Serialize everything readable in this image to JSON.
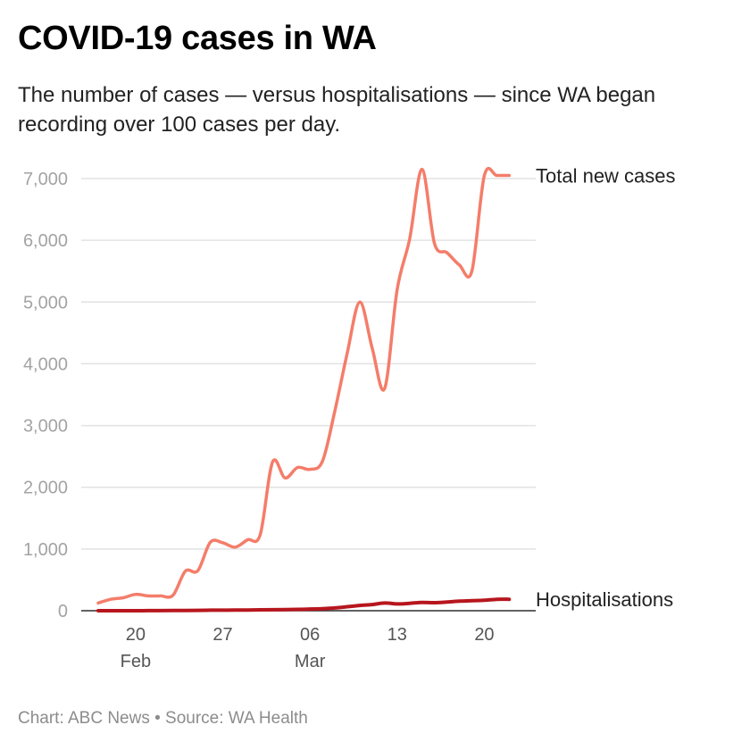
{
  "header": {
    "title": "COVID-19 cases in WA",
    "subtitle": "The number of cases — versus hospitalisations — since WA began recording over 100 cases per day."
  },
  "footer": {
    "credit": "Chart: ABC News • Source: WA Health"
  },
  "chart_data": {
    "type": "line",
    "title": "COVID-19 cases in WA",
    "ylim": [
      0,
      7000
    ],
    "yticks": [
      "0",
      "1,000",
      "2,000",
      "3,000",
      "4,000",
      "5,000",
      "6,000",
      "7,000"
    ],
    "grid": true,
    "x": [
      "2022-02-17",
      "2022-02-18",
      "2022-02-19",
      "2022-02-20",
      "2022-02-21",
      "2022-02-22",
      "2022-02-23",
      "2022-02-24",
      "2022-02-25",
      "2022-02-26",
      "2022-02-27",
      "2022-02-28",
      "2022-03-01",
      "2022-03-02",
      "2022-03-03",
      "2022-03-04",
      "2022-03-05",
      "2022-03-06",
      "2022-03-07",
      "2022-03-08",
      "2022-03-09",
      "2022-03-10",
      "2022-03-11",
      "2022-03-12",
      "2022-03-13",
      "2022-03-14",
      "2022-03-15",
      "2022-03-16",
      "2022-03-17",
      "2022-03-18",
      "2022-03-19",
      "2022-03-20",
      "2022-03-21",
      "2022-03-22"
    ],
    "xticks": [
      {
        "date": "2022-02-20",
        "day": "20",
        "month": "Feb"
      },
      {
        "date": "2022-02-27",
        "day": "27",
        "month": ""
      },
      {
        "date": "2022-03-06",
        "day": "06",
        "month": "Mar"
      },
      {
        "date": "2022-03-13",
        "day": "13",
        "month": ""
      },
      {
        "date": "2022-03-20",
        "day": "20",
        "month": ""
      }
    ],
    "series": [
      {
        "name": "Total new cases",
        "color": "#f47d6a",
        "values": [
          125,
          185,
          210,
          265,
          240,
          240,
          250,
          640,
          650,
          1110,
          1100,
          1030,
          1150,
          1230,
          2410,
          2150,
          2320,
          2290,
          2420,
          3240,
          4180,
          5000,
          4250,
          3600,
          5200,
          6020,
          7150,
          5950,
          5800,
          5600,
          5500,
          7050,
          7050,
          7050
        ]
      },
      {
        "name": "Hospitalisations",
        "color": "#b7161e",
        "values": [
          0,
          0,
          0,
          0,
          1,
          2,
          3,
          5,
          6,
          8,
          9,
          10,
          12,
          14,
          16,
          18,
          22,
          27,
          33,
          45,
          65,
          85,
          100,
          125,
          110,
          120,
          135,
          130,
          140,
          155,
          162,
          170,
          185,
          185
        ]
      }
    ]
  }
}
